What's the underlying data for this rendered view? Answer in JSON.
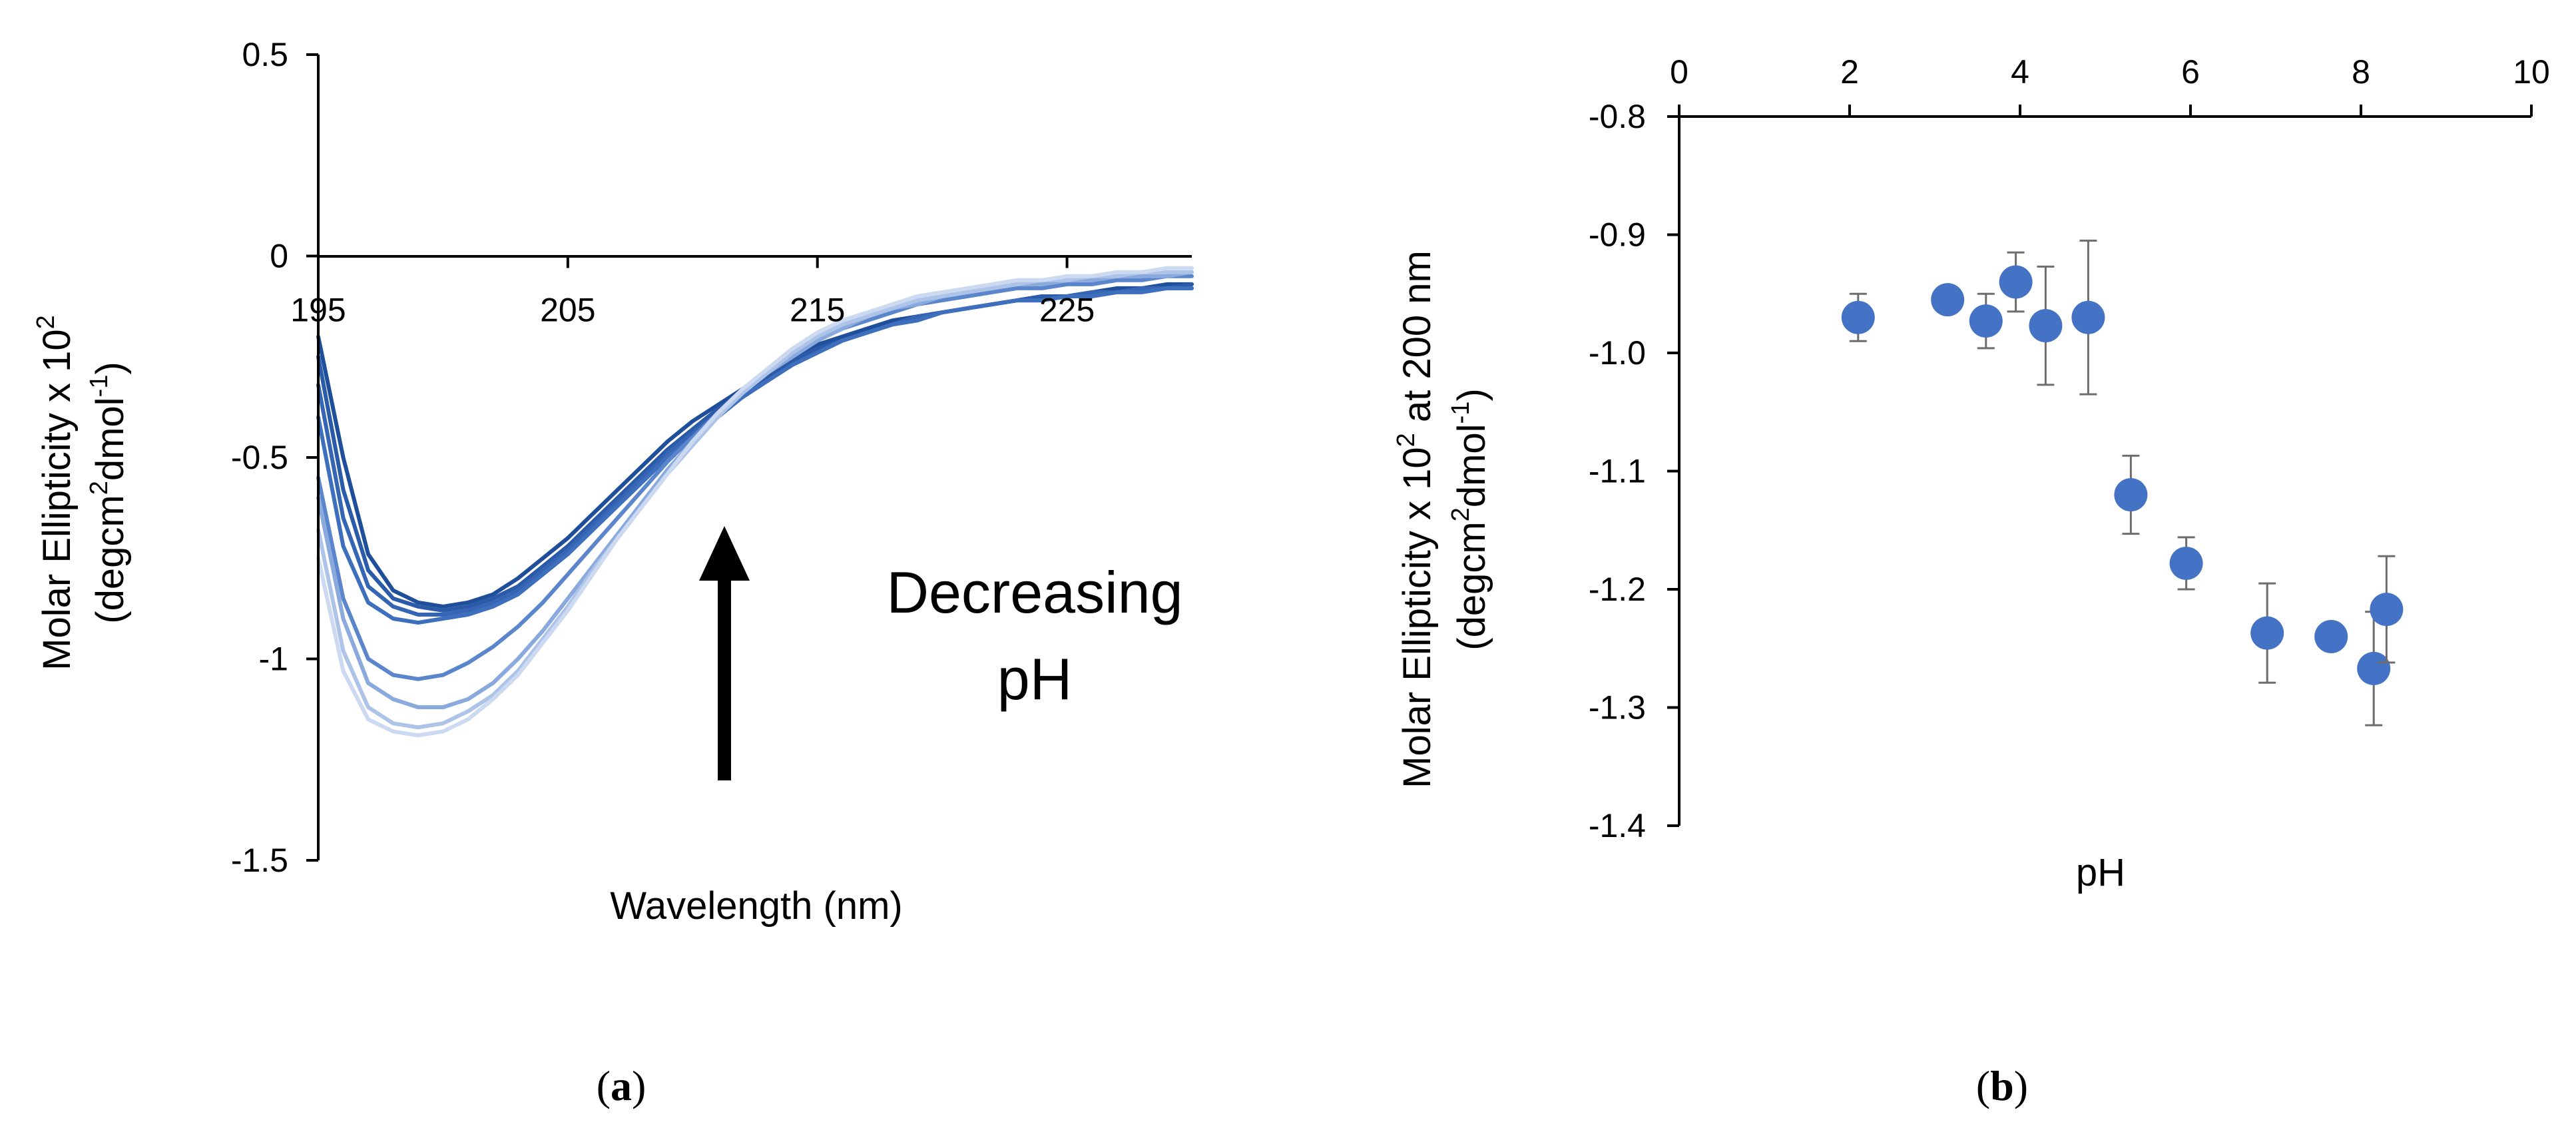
{
  "chart_data": [
    {
      "type": "line",
      "panel": "a",
      "panel_label_open": "(",
      "panel_label_letter": "a",
      "panel_label_close": ")",
      "xlabel": "Wavelength (nm)",
      "ylabel_line1": "Molar Ellipticity x 10",
      "ylabel_sup": "2",
      "ylabel_line2_part1": "(degcm",
      "ylabel_line2_sup1": "2",
      "ylabel_line2_part2": "dmol",
      "ylabel_line2_sup2": "-1",
      "ylabel_line2_part3": ")",
      "xlim": [
        195,
        230
      ],
      "ylim": [
        -1.5,
        0.5
      ],
      "xticks": [
        195,
        205,
        215,
        225
      ],
      "xtick_labels": [
        "195",
        "205",
        "215",
        "225"
      ],
      "yticks": [
        0.5,
        0,
        -0.5,
        -1,
        -1.5
      ],
      "ytick_labels": [
        "0.5",
        "0",
        "-0.5",
        "-1",
        "-1.5"
      ],
      "annotation_line1": "Decreasing",
      "annotation_line2": "pH",
      "annotation_arrow": "up",
      "series": [
        {
          "name": "spectrum-1",
          "color": "#1f4e9a",
          "x": [
            195,
            196,
            197,
            198,
            199,
            200,
            201,
            202,
            203,
            204,
            205,
            206,
            207,
            208,
            209,
            210,
            211,
            212,
            213,
            214,
            215,
            216,
            217,
            218,
            219,
            220,
            221,
            222,
            223,
            224,
            225,
            226,
            227,
            228,
            229,
            230
          ],
          "y": [
            -0.2,
            -0.5,
            -0.74,
            -0.83,
            -0.86,
            -0.87,
            -0.86,
            -0.84,
            -0.8,
            -0.75,
            -0.7,
            -0.64,
            -0.58,
            -0.52,
            -0.46,
            -0.41,
            -0.37,
            -0.33,
            -0.29,
            -0.25,
            -0.22,
            -0.2,
            -0.18,
            -0.16,
            -0.15,
            -0.14,
            -0.13,
            -0.12,
            -0.11,
            -0.1,
            -0.1,
            -0.09,
            -0.08,
            -0.08,
            -0.07,
            -0.07
          ]
        },
        {
          "name": "spectrum-2",
          "color": "#2a5aa8",
          "x": [
            195,
            196,
            197,
            198,
            199,
            200,
            201,
            202,
            203,
            204,
            205,
            206,
            207,
            208,
            209,
            210,
            211,
            212,
            213,
            214,
            215,
            216,
            217,
            218,
            219,
            220,
            221,
            222,
            223,
            224,
            225,
            226,
            227,
            228,
            229,
            230
          ],
          "y": [
            -0.25,
            -0.58,
            -0.78,
            -0.85,
            -0.87,
            -0.88,
            -0.87,
            -0.85,
            -0.82,
            -0.77,
            -0.72,
            -0.66,
            -0.6,
            -0.54,
            -0.48,
            -0.43,
            -0.38,
            -0.34,
            -0.3,
            -0.26,
            -0.23,
            -0.21,
            -0.19,
            -0.17,
            -0.15,
            -0.14,
            -0.13,
            -0.12,
            -0.11,
            -0.1,
            -0.1,
            -0.09,
            -0.09,
            -0.08,
            -0.08,
            -0.07
          ]
        },
        {
          "name": "spectrum-3",
          "color": "#3565b3",
          "x": [
            195,
            196,
            197,
            198,
            199,
            200,
            201,
            202,
            203,
            204,
            205,
            206,
            207,
            208,
            209,
            210,
            211,
            212,
            213,
            214,
            215,
            216,
            217,
            218,
            219,
            220,
            221,
            222,
            223,
            224,
            225,
            226,
            227,
            228,
            229,
            230
          ],
          "y": [
            -0.32,
            -0.65,
            -0.82,
            -0.87,
            -0.89,
            -0.89,
            -0.88,
            -0.86,
            -0.83,
            -0.78,
            -0.73,
            -0.67,
            -0.61,
            -0.55,
            -0.49,
            -0.44,
            -0.39,
            -0.35,
            -0.31,
            -0.27,
            -0.24,
            -0.21,
            -0.19,
            -0.17,
            -0.15,
            -0.14,
            -0.13,
            -0.12,
            -0.11,
            -0.11,
            -0.1,
            -0.09,
            -0.09,
            -0.08,
            -0.08,
            -0.08
          ]
        },
        {
          "name": "spectrum-4",
          "color": "#3e6fbd",
          "x": [
            195,
            196,
            197,
            198,
            199,
            200,
            201,
            202,
            203,
            204,
            205,
            206,
            207,
            208,
            209,
            210,
            211,
            212,
            213,
            214,
            215,
            216,
            217,
            218,
            219,
            220,
            221,
            222,
            223,
            224,
            225,
            226,
            227,
            228,
            229,
            230
          ],
          "y": [
            -0.4,
            -0.72,
            -0.86,
            -0.9,
            -0.91,
            -0.9,
            -0.89,
            -0.87,
            -0.84,
            -0.79,
            -0.74,
            -0.68,
            -0.62,
            -0.56,
            -0.5,
            -0.45,
            -0.4,
            -0.35,
            -0.31,
            -0.27,
            -0.24,
            -0.21,
            -0.19,
            -0.17,
            -0.16,
            -0.14,
            -0.13,
            -0.12,
            -0.11,
            -0.11,
            -0.1,
            -0.1,
            -0.09,
            -0.09,
            -0.08,
            -0.08
          ]
        },
        {
          "name": "spectrum-5",
          "color": "#5b86cc",
          "x": [
            195,
            196,
            197,
            198,
            199,
            200,
            201,
            202,
            203,
            204,
            205,
            206,
            207,
            208,
            209,
            210,
            211,
            212,
            213,
            214,
            215,
            216,
            217,
            218,
            219,
            220,
            221,
            222,
            223,
            224,
            225,
            226,
            227,
            228,
            229,
            230
          ],
          "y": [
            -0.55,
            -0.85,
            -1.0,
            -1.04,
            -1.05,
            -1.04,
            -1.01,
            -0.97,
            -0.92,
            -0.86,
            -0.79,
            -0.72,
            -0.65,
            -0.58,
            -0.51,
            -0.45,
            -0.39,
            -0.34,
            -0.29,
            -0.25,
            -0.21,
            -0.18,
            -0.16,
            -0.14,
            -0.12,
            -0.11,
            -0.1,
            -0.09,
            -0.08,
            -0.08,
            -0.07,
            -0.07,
            -0.06,
            -0.06,
            -0.05,
            -0.05
          ]
        },
        {
          "name": "spectrum-6",
          "color": "#8aa9dc",
          "x": [
            195,
            196,
            197,
            198,
            199,
            200,
            201,
            202,
            203,
            204,
            205,
            206,
            207,
            208,
            209,
            210,
            211,
            212,
            213,
            214,
            215,
            216,
            217,
            218,
            219,
            220,
            221,
            222,
            223,
            224,
            225,
            226,
            227,
            228,
            229,
            230
          ],
          "y": [
            -0.6,
            -0.9,
            -1.06,
            -1.1,
            -1.12,
            -1.12,
            -1.1,
            -1.06,
            -1.0,
            -0.93,
            -0.85,
            -0.77,
            -0.69,
            -0.61,
            -0.53,
            -0.46,
            -0.4,
            -0.34,
            -0.29,
            -0.25,
            -0.21,
            -0.18,
            -0.15,
            -0.13,
            -0.12,
            -0.1,
            -0.09,
            -0.08,
            -0.07,
            -0.07,
            -0.06,
            -0.06,
            -0.05,
            -0.05,
            -0.05,
            -0.04
          ]
        },
        {
          "name": "spectrum-7",
          "color": "#aec3e8",
          "x": [
            195,
            196,
            197,
            198,
            199,
            200,
            201,
            202,
            203,
            204,
            205,
            206,
            207,
            208,
            209,
            210,
            211,
            212,
            213,
            214,
            215,
            216,
            217,
            218,
            219,
            220,
            221,
            222,
            223,
            224,
            225,
            226,
            227,
            228,
            229,
            230
          ],
          "y": [
            -0.68,
            -0.98,
            -1.12,
            -1.16,
            -1.17,
            -1.16,
            -1.13,
            -1.09,
            -1.03,
            -0.95,
            -0.87,
            -0.78,
            -0.7,
            -0.62,
            -0.54,
            -0.47,
            -0.4,
            -0.34,
            -0.29,
            -0.24,
            -0.2,
            -0.17,
            -0.15,
            -0.13,
            -0.11,
            -0.1,
            -0.09,
            -0.08,
            -0.07,
            -0.06,
            -0.06,
            -0.05,
            -0.05,
            -0.04,
            -0.04,
            -0.04
          ]
        },
        {
          "name": "spectrum-8",
          "color": "#cbd9f1",
          "x": [
            195,
            196,
            197,
            198,
            199,
            200,
            201,
            202,
            203,
            204,
            205,
            206,
            207,
            208,
            209,
            210,
            211,
            212,
            213,
            214,
            215,
            216,
            217,
            218,
            219,
            220,
            221,
            222,
            223,
            224,
            225,
            226,
            227,
            228,
            229,
            230
          ],
          "y": [
            -0.75,
            -1.03,
            -1.15,
            -1.18,
            -1.19,
            -1.18,
            -1.15,
            -1.1,
            -1.04,
            -0.96,
            -0.88,
            -0.79,
            -0.7,
            -0.62,
            -0.54,
            -0.46,
            -0.39,
            -0.33,
            -0.28,
            -0.23,
            -0.19,
            -0.16,
            -0.14,
            -0.12,
            -0.1,
            -0.09,
            -0.08,
            -0.07,
            -0.06,
            -0.06,
            -0.05,
            -0.05,
            -0.04,
            -0.04,
            -0.03,
            -0.03
          ]
        }
      ]
    },
    {
      "type": "scatter",
      "panel": "b",
      "panel_label_open": "(",
      "panel_label_letter": "b",
      "panel_label_close": ")",
      "xlabel": "pH",
      "ylabel_line1_part1": "Molar Ellipticity x 10",
      "ylabel_line1_sup": "2",
      "ylabel_line1_part2": " at 200 nm",
      "ylabel_line2_part1": "(degcm",
      "ylabel_line2_sup1": "2",
      "ylabel_line2_part2": "dmol",
      "ylabel_line2_sup2": "-1",
      "ylabel_line2_part3": ")",
      "xlim": [
        0,
        10
      ],
      "ylim": [
        -1.4,
        -0.8
      ],
      "xticks": [
        0,
        2,
        4,
        6,
        8,
        10
      ],
      "xtick_labels": [
        "0",
        "2",
        "4",
        "6",
        "8",
        "10"
      ],
      "yticks": [
        -0.8,
        -0.9,
        -1.0,
        -1.1,
        -1.2,
        -1.3,
        -1.4
      ],
      "ytick_labels": [
        "-0.8",
        "-0.9",
        "-1.0",
        "-1.1",
        "-1.2",
        "-1.3",
        "-1.4"
      ],
      "marker_color": "#4472c4",
      "points": [
        {
          "x": 2.1,
          "y": -0.97,
          "err": 0.02
        },
        {
          "x": 3.15,
          "y": -0.955,
          "err": 0.0
        },
        {
          "x": 3.6,
          "y": -0.973,
          "err": 0.023
        },
        {
          "x": 3.95,
          "y": -0.94,
          "err": 0.025
        },
        {
          "x": 4.3,
          "y": -0.977,
          "err": 0.05
        },
        {
          "x": 4.8,
          "y": -0.97,
          "err": 0.065
        },
        {
          "x": 5.3,
          "y": -1.12,
          "err": 0.033
        },
        {
          "x": 5.95,
          "y": -1.178,
          "err": 0.022
        },
        {
          "x": 6.9,
          "y": -1.237,
          "err": 0.042
        },
        {
          "x": 7.65,
          "y": -1.24,
          "err": 0.0
        },
        {
          "x": 8.15,
          "y": -1.267,
          "err": 0.048
        },
        {
          "x": 8.3,
          "y": -1.217,
          "err": 0.045
        }
      ]
    }
  ]
}
